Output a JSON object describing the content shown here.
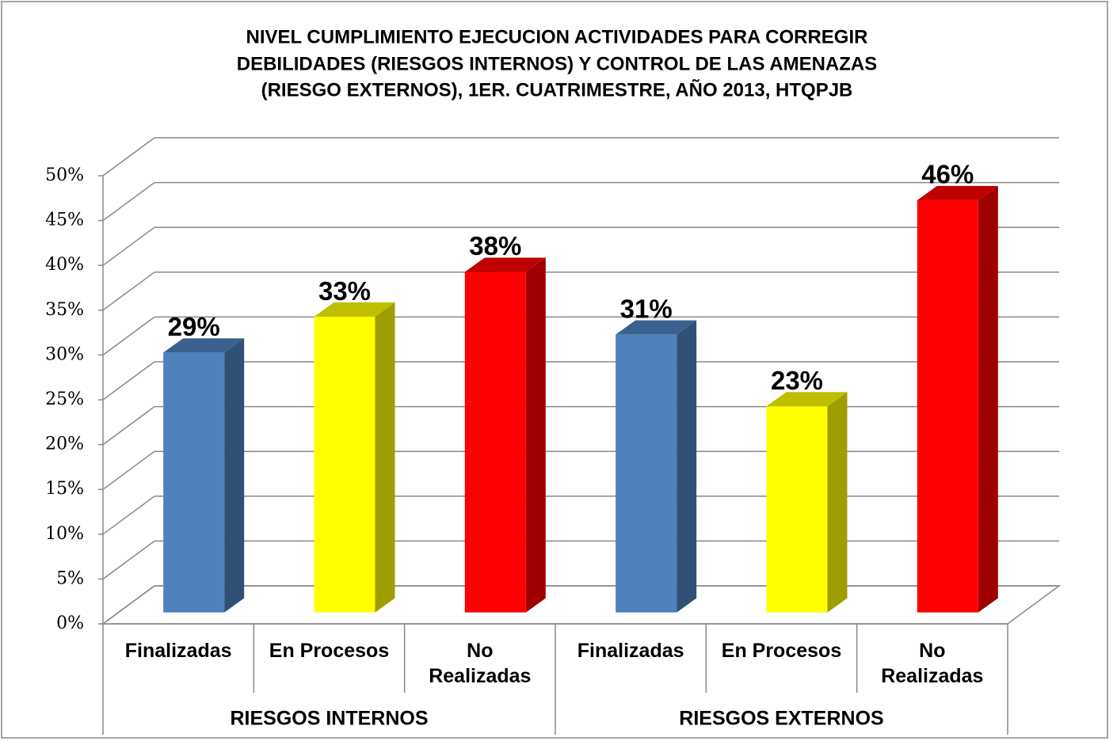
{
  "chart_data": {
    "type": "bar3d",
    "title": [
      "NIVEL CUMPLIMIENTO EJECUCION ACTIVIDADES PARA CORREGIR",
      "DEBILIDADES (RIESGOS INTERNOS) Y CONTROL DE LAS AMENAZAS",
      "(RIESGO EXTERNOS),  1ER. CUATRIMESTRE, AÑO 2013, HTQPJB"
    ],
    "categories": [
      "Finalizadas",
      "En Procesos",
      "No Realizadas",
      "Finalizadas",
      "En Procesos",
      "No Realizadas"
    ],
    "groups": [
      "RIESGOS INTERNOS",
      "RIESGOS EXTERNOS"
    ],
    "values": [
      29,
      33,
      38,
      31,
      23,
      46
    ],
    "value_labels": [
      "29%",
      "33%",
      "38%",
      "31%",
      "23%",
      "46%"
    ],
    "colors": [
      "#4f81bd",
      "#ffff00",
      "#ff0000",
      "#4f81bd",
      "#ffff00",
      "#ff0000"
    ],
    "ylim": [
      0,
      50
    ],
    "yticks": [
      {
        "value": 0,
        "label": "0%"
      },
      {
        "value": 5,
        "label": "5%"
      },
      {
        "value": 10,
        "label": "10%"
      },
      {
        "value": 15,
        "label": "15%"
      },
      {
        "value": 20,
        "label": "20%"
      },
      {
        "value": 25,
        "label": "25%"
      },
      {
        "value": 30,
        "label": "30%"
      },
      {
        "value": 35,
        "label": "35%"
      },
      {
        "value": 40,
        "label": "40%"
      },
      {
        "value": 45,
        "label": "45%"
      },
      {
        "value": 50,
        "label": "50%"
      }
    ],
    "grid": true
  }
}
